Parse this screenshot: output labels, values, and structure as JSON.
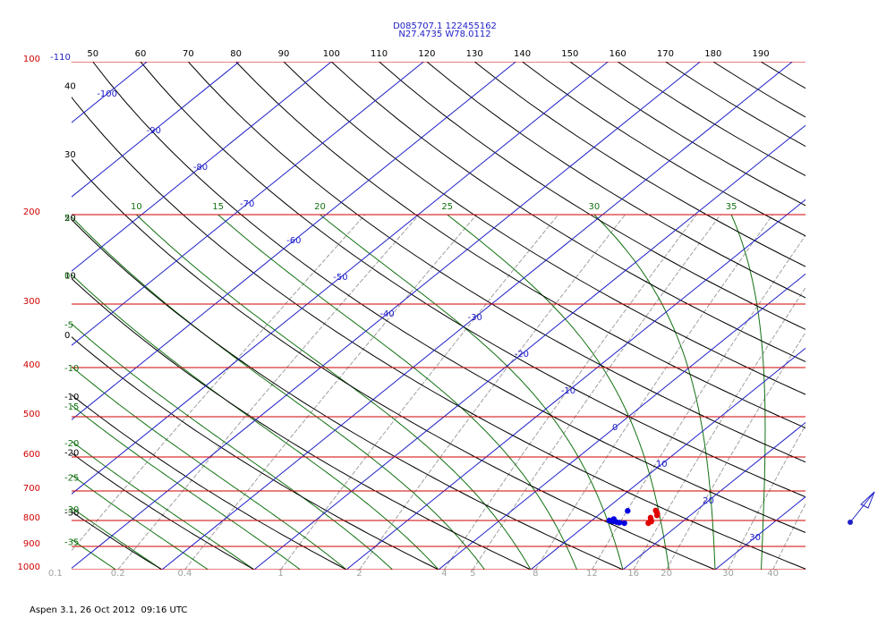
{
  "chart_data": {
    "type": "skewt",
    "title": "D085707.1 122455162",
    "subtitle": "N27.4735 W78.0112",
    "footer": "Aspen 3.1, 26 Oct 2012  09:16 UTC",
    "ylim": [
      1000,
      100
    ],
    "log_y": true,
    "yticks": [
      100,
      200,
      300,
      400,
      500,
      600,
      700,
      800,
      900,
      1000
    ],
    "isotherms": [
      -110,
      -100,
      -90,
      -80,
      -70,
      -60,
      -50,
      -40,
      -30,
      -20,
      -10,
      0,
      10,
      20,
      30
    ],
    "dry_adiabats": [
      -30,
      -20,
      -10,
      0,
      10,
      20,
      30,
      40,
      50,
      60,
      70,
      80,
      90,
      100,
      110,
      120,
      130,
      140,
      150,
      160,
      170,
      180,
      190
    ],
    "moist_adiabats": [
      -40,
      -35,
      -30,
      -25,
      -20,
      -15,
      -10,
      -5,
      0,
      5,
      10,
      15,
      20,
      25,
      30,
      35
    ],
    "mixing_ratios": [
      0.1,
      0.2,
      0.4,
      1,
      2,
      4,
      5,
      8,
      12,
      16,
      20,
      30,
      40
    ],
    "colors": {
      "isobar": "#d00000",
      "isotherm": "#2020c8",
      "dry_adiabat": "#000000",
      "moist_adiabat": "#107010",
      "mixing_ratio": "#a0a0a0"
    },
    "series": [
      {
        "color": "#e00000",
        "pressure": [
          765,
          770,
          776,
          782,
          790,
          797,
          804,
          810
        ],
        "values": [
          15.6,
          15.9,
          16.2,
          16.4,
          16.0,
          16.3,
          16.6,
          16.5
        ]
      },
      {
        "color": "#0000e0",
        "pressure": [
          766,
          795,
          800,
          803,
          806,
          808,
          810
        ],
        "values": [
          12.6,
          12.2,
          11.9,
          12.4,
          12.9,
          13.3,
          13.9
        ]
      }
    ]
  }
}
